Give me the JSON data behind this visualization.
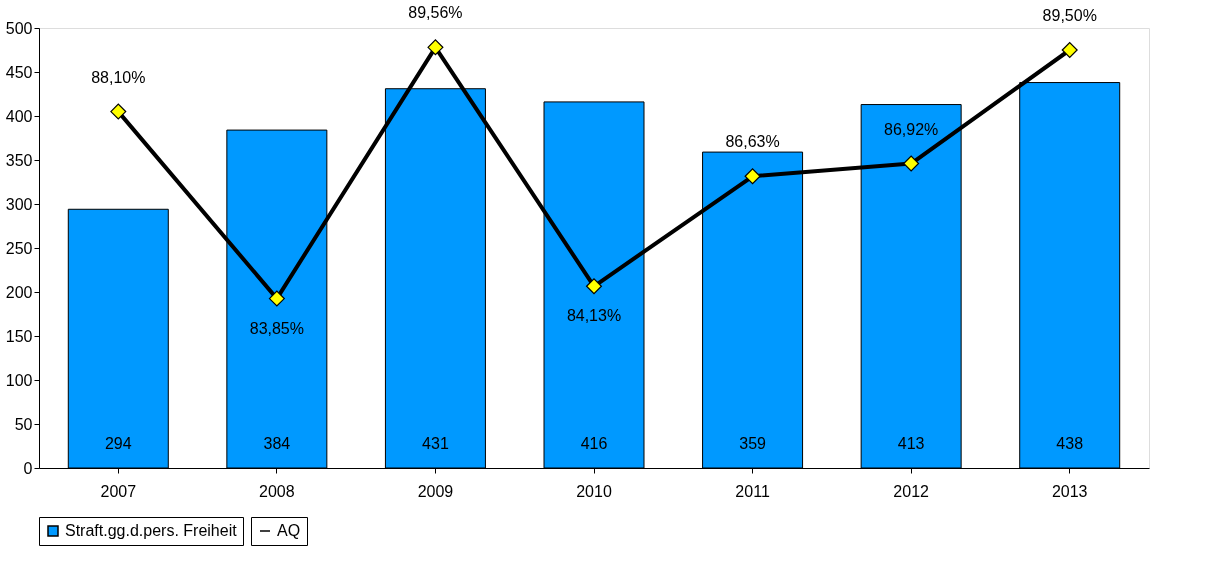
{
  "chart_data": {
    "type": "bar",
    "categories": [
      "2007",
      "2008",
      "2009",
      "2010",
      "2011",
      "2012",
      "2013"
    ],
    "series": [
      {
        "name": "Straft.gg.d.pers. Freiheit",
        "color": "#0099ff",
        "values": [
          294,
          384,
          431,
          416,
          359,
          413,
          438
        ],
        "value_labels": [
          "294",
          "384",
          "431",
          "416",
          "359",
          "413",
          "438"
        ]
      },
      {
        "name": "AQ",
        "type": "line",
        "axis": "y2",
        "color": "#000000",
        "values": [
          88.1,
          83.85,
          89.56,
          84.13,
          86.63,
          86.92,
          89.5
        ],
        "value_labels": [
          "88,10%",
          "83,85%",
          "89,56%",
          "84,13%",
          "86,63%",
          "86,92%",
          "89,50%"
        ]
      }
    ],
    "ylim": [
      0,
      500
    ],
    "yticks": [
      0,
      50,
      100,
      150,
      200,
      250,
      300,
      350,
      400,
      450,
      500
    ],
    "y2lim": [
      80,
      90
    ],
    "grid": false,
    "legend": "bottom",
    "marker": "diamond",
    "line_style": "solid"
  }
}
